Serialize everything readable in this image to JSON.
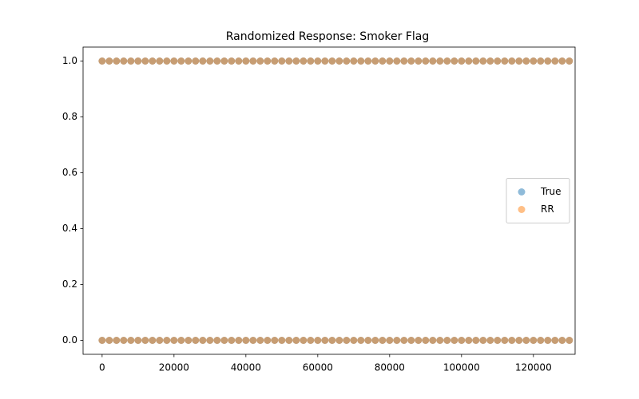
{
  "chart_data": {
    "type": "scatter",
    "title": "Randomized Response: Smoker Flag",
    "x": [
      0,
      2000,
      4000,
      6000,
      8000,
      10000,
      12000,
      14000,
      16000,
      18000,
      20000,
      22000,
      24000,
      26000,
      28000,
      30000,
      32000,
      34000,
      36000,
      38000,
      40000,
      42000,
      44000,
      46000,
      48000,
      50000,
      52000,
      54000,
      56000,
      58000,
      60000,
      62000,
      64000,
      66000,
      68000,
      70000,
      72000,
      74000,
      76000,
      78000,
      80000,
      82000,
      84000,
      86000,
      88000,
      90000,
      92000,
      94000,
      96000,
      98000,
      100000,
      102000,
      104000,
      106000,
      108000,
      110000,
      112000,
      114000,
      116000,
      118000,
      120000,
      122000,
      124000,
      126000,
      128000,
      130000,
      0,
      2000,
      4000,
      6000,
      8000,
      10000,
      12000,
      14000,
      16000,
      18000,
      20000,
      22000,
      24000,
      26000,
      28000,
      30000,
      32000,
      34000,
      36000,
      38000,
      40000,
      42000,
      44000,
      46000,
      48000,
      50000,
      52000,
      54000,
      56000,
      58000,
      60000,
      62000,
      64000,
      66000,
      68000,
      70000,
      72000,
      74000,
      76000,
      78000,
      80000,
      82000,
      84000,
      86000,
      88000,
      90000,
      92000,
      94000,
      96000,
      98000,
      100000,
      102000,
      104000,
      106000,
      108000,
      110000,
      112000,
      114000,
      116000,
      118000,
      120000,
      122000,
      124000,
      126000,
      128000,
      130000
    ],
    "series": [
      {
        "name": "True",
        "color": "#1f77b4",
        "values": [
          1,
          1,
          1,
          1,
          1,
          1,
          1,
          1,
          1,
          1,
          1,
          1,
          1,
          1,
          1,
          1,
          1,
          1,
          1,
          1,
          1,
          1,
          1,
          1,
          1,
          1,
          1,
          1,
          1,
          1,
          1,
          1,
          1,
          1,
          1,
          1,
          1,
          1,
          1,
          1,
          1,
          1,
          1,
          1,
          1,
          1,
          1,
          1,
          1,
          1,
          1,
          1,
          1,
          1,
          1,
          1,
          1,
          1,
          1,
          1,
          1,
          1,
          1,
          1,
          1,
          1,
          0,
          0,
          0,
          0,
          0,
          0,
          0,
          0,
          0,
          0,
          0,
          0,
          0,
          0,
          0,
          0,
          0,
          0,
          0,
          0,
          0,
          0,
          0,
          0,
          0,
          0,
          0,
          0,
          0,
          0,
          0,
          0,
          0,
          0,
          0,
          0,
          0,
          0,
          0,
          0,
          0,
          0,
          0,
          0,
          0,
          0,
          0,
          0,
          0,
          0,
          0,
          0,
          0,
          0,
          0,
          0,
          0,
          0,
          0,
          0,
          0,
          0,
          0,
          0,
          0,
          0
        ]
      },
      {
        "name": "RR",
        "color": "#ff7f0e",
        "values": [
          1,
          1,
          1,
          1,
          1,
          1,
          1,
          1,
          1,
          1,
          1,
          1,
          1,
          1,
          1,
          1,
          1,
          1,
          1,
          1,
          1,
          1,
          1,
          1,
          1,
          1,
          1,
          1,
          1,
          1,
          1,
          1,
          1,
          1,
          1,
          1,
          1,
          1,
          1,
          1,
          1,
          1,
          1,
          1,
          1,
          1,
          1,
          1,
          1,
          1,
          1,
          1,
          1,
          1,
          1,
          1,
          1,
          1,
          1,
          1,
          1,
          1,
          1,
          1,
          1,
          1,
          0,
          0,
          0,
          0,
          0,
          0,
          0,
          0,
          0,
          0,
          0,
          0,
          0,
          0,
          0,
          0,
          0,
          0,
          0,
          0,
          0,
          0,
          0,
          0,
          0,
          0,
          0,
          0,
          0,
          0,
          0,
          0,
          0,
          0,
          0,
          0,
          0,
          0,
          0,
          0,
          0,
          0,
          0,
          0,
          0,
          0,
          0,
          0,
          0,
          0,
          0,
          0,
          0,
          0,
          0,
          0,
          0,
          0,
          0,
          0,
          0,
          0,
          0,
          0,
          0,
          0
        ]
      }
    ],
    "xlim": [
      -5300,
      131600
    ],
    "xticks": [
      0,
      20000,
      40000,
      60000,
      80000,
      100000,
      120000
    ],
    "ylim": [
      -0.05,
      1.05
    ],
    "yticks": [
      {
        "value": 0,
        "label": "0.0"
      },
      0.2,
      0.4,
      0.6,
      0.8,
      {
        "value": 1,
        "label": "1.0"
      }
    ],
    "legend": "center right",
    "alpha": 0.5
  }
}
